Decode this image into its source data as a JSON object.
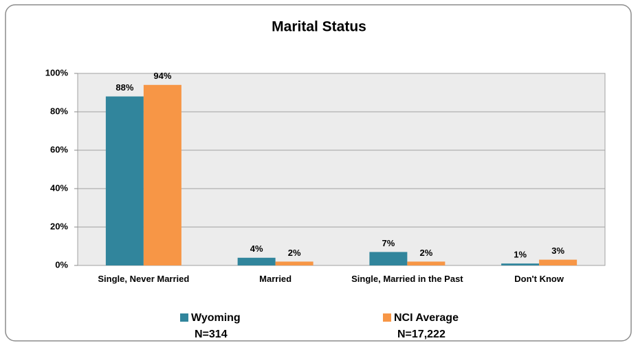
{
  "chart_data": {
    "type": "bar",
    "title": "Marital Status",
    "categories": [
      "Single, Never Married",
      "Married",
      "Single, Married in the Past",
      "Don't Know"
    ],
    "series": [
      {
        "name": "Wyoming",
        "note": "N=314",
        "color": "#31859c",
        "values": [
          88,
          4,
          7,
          1
        ],
        "value_labels": [
          "88%",
          "4%",
          "7%",
          "1%"
        ]
      },
      {
        "name": "NCI Average",
        "note": "N=17,222",
        "color": "#f79646",
        "values": [
          94,
          2,
          2,
          3
        ],
        "value_labels": [
          "94%",
          "2%",
          "2%",
          "3%"
        ]
      }
    ],
    "ylim": [
      0,
      100
    ],
    "yticks": [
      {
        "value": 0,
        "label": "0%"
      },
      {
        "value": 20,
        "label": "20%"
      },
      {
        "value": 40,
        "label": "40%"
      },
      {
        "value": 60,
        "label": "60%"
      },
      {
        "value": 80,
        "label": "80%"
      },
      {
        "value": 100,
        "label": "100%"
      }
    ],
    "grid": true,
    "legend": "bottom"
  }
}
